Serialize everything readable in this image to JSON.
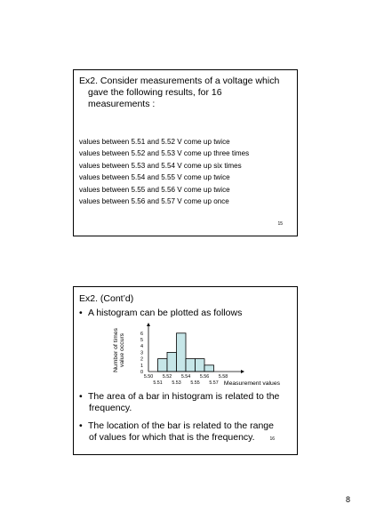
{
  "slide1": {
    "title_line1": "Ex2. Consider measurements of a voltage which",
    "title_line2": "gave the following results, for 16",
    "title_line3": "measurements :",
    "lines": [
      "values between 5.51 and 5.52 V come up twice",
      "values between 5.52 and 5.53 V come up three times",
      "values between 5.53 and 5.54 V come up six times",
      "values between 5.54 and 5.55 V come up twice",
      "values between 5.55 and 5.56 V come up twice",
      "values between 5.56 and 5.57 V come up once"
    ],
    "slide_number": "15"
  },
  "slide2": {
    "title": "Ex2. (Cont’d)",
    "bullet_char": "•",
    "bullet1": "A histogram can be plotted as follows",
    "bullet2_line1": "The area of a bar in histogram is related to the",
    "bullet2_line2": "frequency.",
    "bullet3_line1": "The location of the bar is related to the range",
    "bullet3_line2": "of values for which that is the frequency.",
    "slide_number": "16"
  },
  "chart_data": {
    "type": "bar",
    "bins": [
      {
        "from": 5.51,
        "to": 5.52,
        "count": 2
      },
      {
        "from": 5.52,
        "to": 5.53,
        "count": 3
      },
      {
        "from": 5.53,
        "to": 5.54,
        "count": 6
      },
      {
        "from": 5.54,
        "to": 5.55,
        "count": 2
      },
      {
        "from": 5.55,
        "to": 5.56,
        "count": 2
      },
      {
        "from": 5.56,
        "to": 5.57,
        "count": 1
      }
    ],
    "ylabel_line1": "Number of times",
    "ylabel_line2": "value occurs",
    "xlabel": "Measurement values",
    "y_ticks": [
      "0",
      "1",
      "2",
      "3",
      "4",
      "5",
      "6"
    ],
    "x_ticks_upper": [
      "5.50",
      "5.52",
      "5.54",
      "5.56",
      "5.58"
    ],
    "x_ticks_lower": [
      "5.51",
      "5.53",
      "5.55",
      "5.57"
    ],
    "ylim": [
      0,
      6
    ],
    "xlim": [
      5.5,
      5.58
    ],
    "bar_color": "#c6e6e8"
  },
  "page_number": "8"
}
